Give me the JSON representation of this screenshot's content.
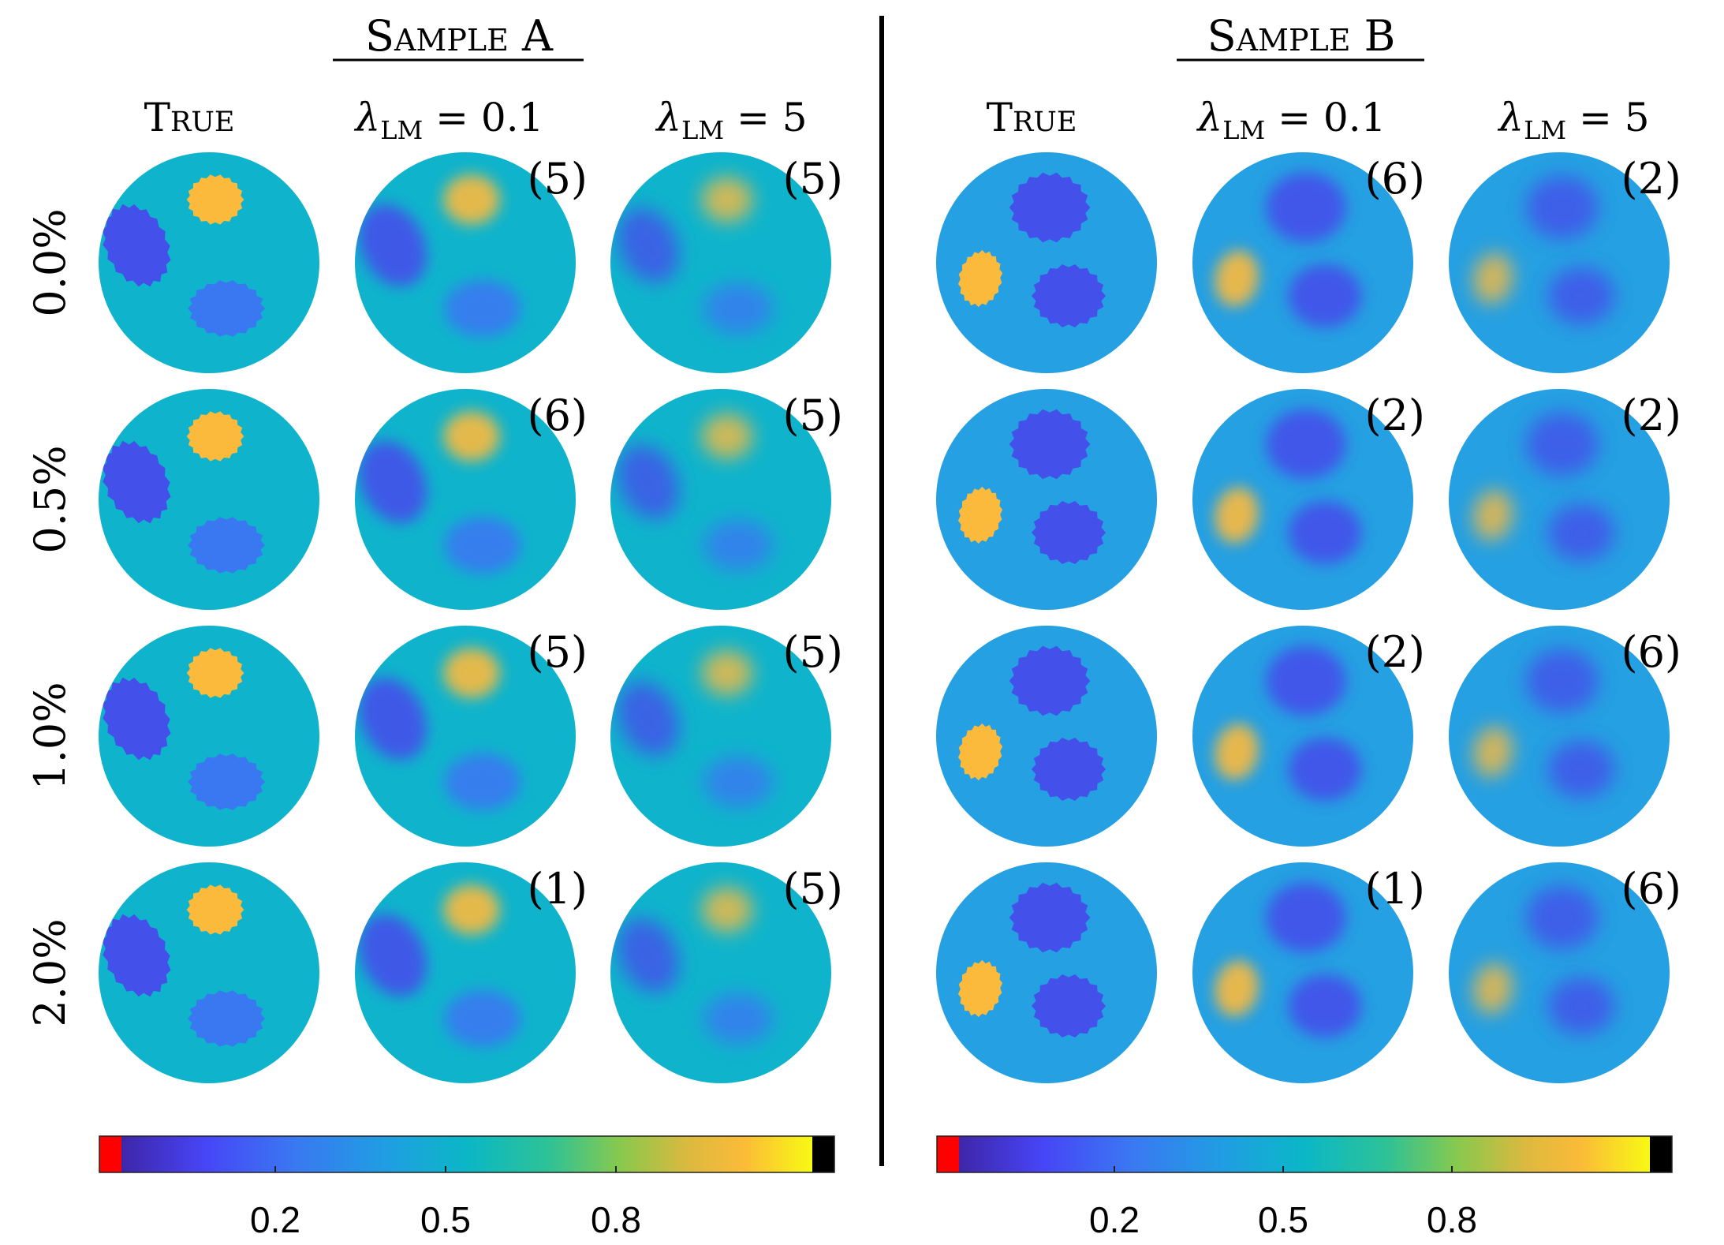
{
  "figure": {
    "samples": [
      {
        "title": "Sample A",
        "column_headers": [
          "True",
          "λLM = 0.1",
          "λLM = 5"
        ],
        "iterations": [
          [
            "5",
            "5"
          ],
          [
            "6",
            "5"
          ],
          [
            "5",
            "5"
          ],
          [
            "1",
            "5"
          ]
        ],
        "colorbar_ticks": [
          "0.2",
          "0.5",
          "0.8"
        ]
      },
      {
        "title": "Sample B",
        "column_headers": [
          "True",
          "λLM = 0.1",
          "λLM = 5"
        ],
        "iterations": [
          [
            "6",
            "2"
          ],
          [
            "2",
            "2"
          ],
          [
            "2",
            "6"
          ],
          [
            "1",
            "6"
          ]
        ],
        "colorbar_ticks": [
          "0.2",
          "0.5",
          "0.8"
        ]
      }
    ],
    "noise_levels": [
      "0.0%",
      "0.5%",
      "1.0%",
      "2.0%"
    ],
    "colors": {
      "sample_a_background": "#0fb4cc",
      "sample_b_background": "#25a0e2",
      "high_inclusion": "#fbba3c",
      "low_inclusion": "#4450ea",
      "mid_inclusion": "#3a78f2",
      "colorbar_under": "#ff0000",
      "colorbar_over": "#000000"
    },
    "colormap": "parula"
  }
}
